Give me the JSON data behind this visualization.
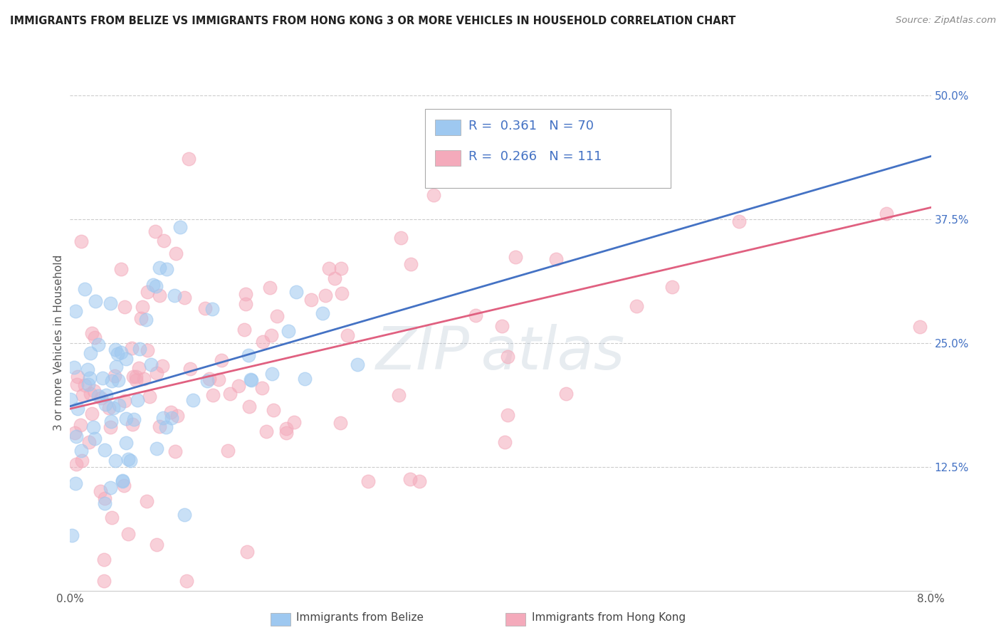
{
  "title": "IMMIGRANTS FROM BELIZE VS IMMIGRANTS FROM HONG KONG 3 OR MORE VEHICLES IN HOUSEHOLD CORRELATION CHART",
  "source": "Source: ZipAtlas.com",
  "ylabel": "3 or more Vehicles in Household",
  "xlim": [
    0.0,
    0.08
  ],
  "ylim": [
    0.0,
    0.5
  ],
  "xtick_positions": [
    0.0,
    0.08
  ],
  "xtick_labels": [
    "0.0%",
    "8.0%"
  ],
  "ytick_positions": [
    0.125,
    0.25,
    0.375,
    0.5
  ],
  "ytick_labels": [
    "12.5%",
    "25.0%",
    "37.5%",
    "50.0%"
  ],
  "legend_belize": "Immigrants from Belize",
  "legend_hongkong": "Immigrants from Hong Kong",
  "R_belize": 0.361,
  "N_belize": 70,
  "R_hongkong": 0.266,
  "N_hongkong": 111,
  "color_belize": "#9EC8F0",
  "color_hongkong": "#F4AABB",
  "line_color_belize": "#4472C4",
  "line_color_hongkong": "#E06080",
  "background_color": "#FFFFFF",
  "grid_color": "#CCCCCC",
  "title_color": "#222222",
  "source_color": "#888888",
  "axis_color": "#555555",
  "right_tick_color": "#4472C4"
}
